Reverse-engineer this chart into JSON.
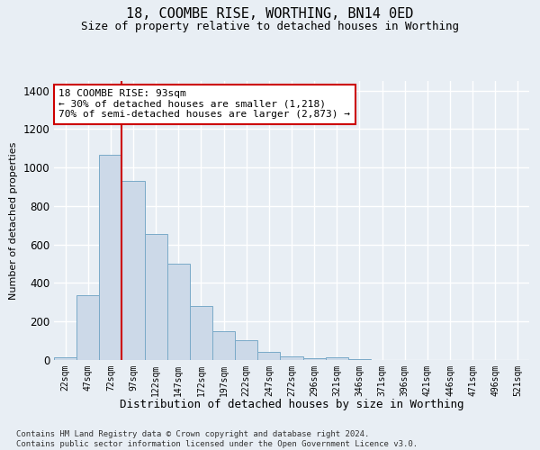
{
  "title": "18, COOMBE RISE, WORTHING, BN14 0ED",
  "subtitle": "Size of property relative to detached houses in Worthing",
  "xlabel": "Distribution of detached houses by size in Worthing",
  "ylabel": "Number of detached properties",
  "bar_labels": [
    "22sqm",
    "47sqm",
    "72sqm",
    "97sqm",
    "122sqm",
    "147sqm",
    "172sqm",
    "197sqm",
    "222sqm",
    "247sqm",
    "272sqm",
    "296sqm",
    "321sqm",
    "346sqm",
    "371sqm",
    "396sqm",
    "421sqm",
    "446sqm",
    "471sqm",
    "496sqm",
    "521sqm"
  ],
  "bar_values": [
    15,
    335,
    1065,
    930,
    655,
    500,
    280,
    150,
    105,
    40,
    18,
    8,
    14,
    5,
    0,
    0,
    0,
    0,
    0,
    0,
    0
  ],
  "bar_color": "#ccd9e8",
  "bar_edgecolor": "#7aaac8",
  "annotation_text": "18 COOMBE RISE: 93sqm\n← 30% of detached houses are smaller (1,218)\n70% of semi-detached houses are larger (2,873) →",
  "annotation_box_color": "#ffffff",
  "annotation_box_edgecolor": "#cc0000",
  "vline_color": "#cc0000",
  "vline_x": 3.0,
  "ylim": [
    0,
    1450
  ],
  "yticks": [
    0,
    200,
    400,
    600,
    800,
    1000,
    1200,
    1400
  ],
  "footnote": "Contains HM Land Registry data © Crown copyright and database right 2024.\nContains public sector information licensed under the Open Government Licence v3.0.",
  "bg_color": "#e8eef4",
  "plot_bg_color": "#e8eef4",
  "grid_color": "#ffffff",
  "title_fontsize": 11,
  "subtitle_fontsize": 9,
  "ylabel_fontsize": 8,
  "xlabel_fontsize": 9
}
